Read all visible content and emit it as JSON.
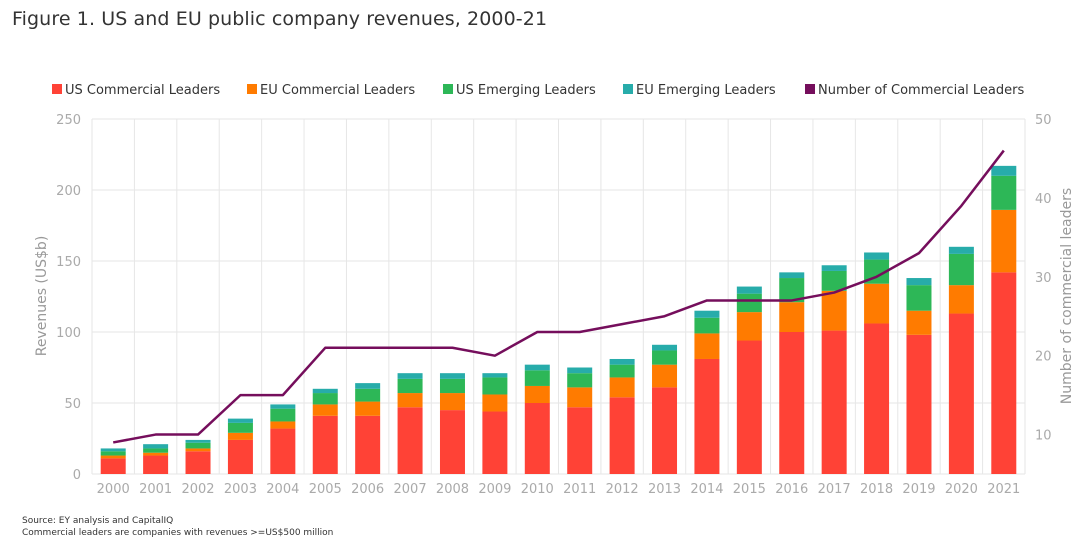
{
  "title": "Figure 1. US and EU public company revenues, 2000-21",
  "notes": {
    "source": "Source: EY analysis and CapitalIQ",
    "footnote": "Commercial leaders are companies with revenues >=US$500 million"
  },
  "colors": {
    "us_commercial": "#ff4236",
    "eu_commercial": "#ff7b00",
    "us_emerging": "#2db757",
    "eu_emerging": "#27acaa",
    "line": "#750e5c",
    "grid": "#e6e6e6"
  },
  "chart_data": {
    "type": "bar",
    "stacked": true,
    "categories": [
      "2000",
      "2001",
      "2002",
      "2003",
      "2004",
      "2005",
      "2006",
      "2007",
      "2008",
      "2009",
      "2010",
      "2011",
      "2012",
      "2013",
      "2014",
      "2015",
      "2016",
      "2017",
      "2018",
      "2019",
      "2020",
      "2021"
    ],
    "series": [
      {
        "name": "US Commercial Leaders",
        "values": [
          11,
          13,
          16,
          24,
          32,
          41,
          41,
          47,
          45,
          44,
          50,
          47,
          54,
          61,
          81,
          94,
          100,
          101,
          106,
          98,
          113,
          142
        ]
      },
      {
        "name": "EU Commercial Leaders",
        "values": [
          2,
          2,
          2,
          5,
          5,
          8,
          10,
          10,
          12,
          12,
          12,
          14,
          14,
          16,
          18,
          20,
          21,
          28,
          28,
          17,
          20,
          44
        ]
      },
      {
        "name": "US Emerging Leaders",
        "values": [
          3,
          3,
          4,
          7,
          9,
          8,
          9,
          10,
          10,
          12,
          11,
          10,
          9,
          10,
          11,
          13,
          17,
          14,
          17,
          18,
          22,
          24
        ]
      },
      {
        "name": "EU Emerging Leaders",
        "values": [
          2,
          3,
          2,
          3,
          3,
          3,
          4,
          4,
          4,
          3,
          4,
          4,
          4,
          4,
          5,
          5,
          4,
          4,
          5,
          5,
          5,
          7
        ]
      }
    ],
    "line_series": {
      "name": "Number of Commercial Leaders",
      "axis": "right",
      "values": [
        9,
        10,
        10,
        15,
        15,
        21,
        21,
        21,
        21,
        20,
        23,
        23,
        24,
        25,
        27,
        27,
        27,
        28,
        30,
        33,
        39,
        46
      ]
    },
    "ylabel": "Revenues (US$b)",
    "y2label": "Number of commercial leaders",
    "ylim": [
      0,
      250
    ],
    "y2lim": [
      5,
      50
    ],
    "yticks": [
      0,
      50,
      100,
      150,
      200,
      250
    ],
    "y2ticks": [
      10,
      20,
      30,
      40,
      50
    ],
    "grid": true,
    "legend": "top"
  }
}
